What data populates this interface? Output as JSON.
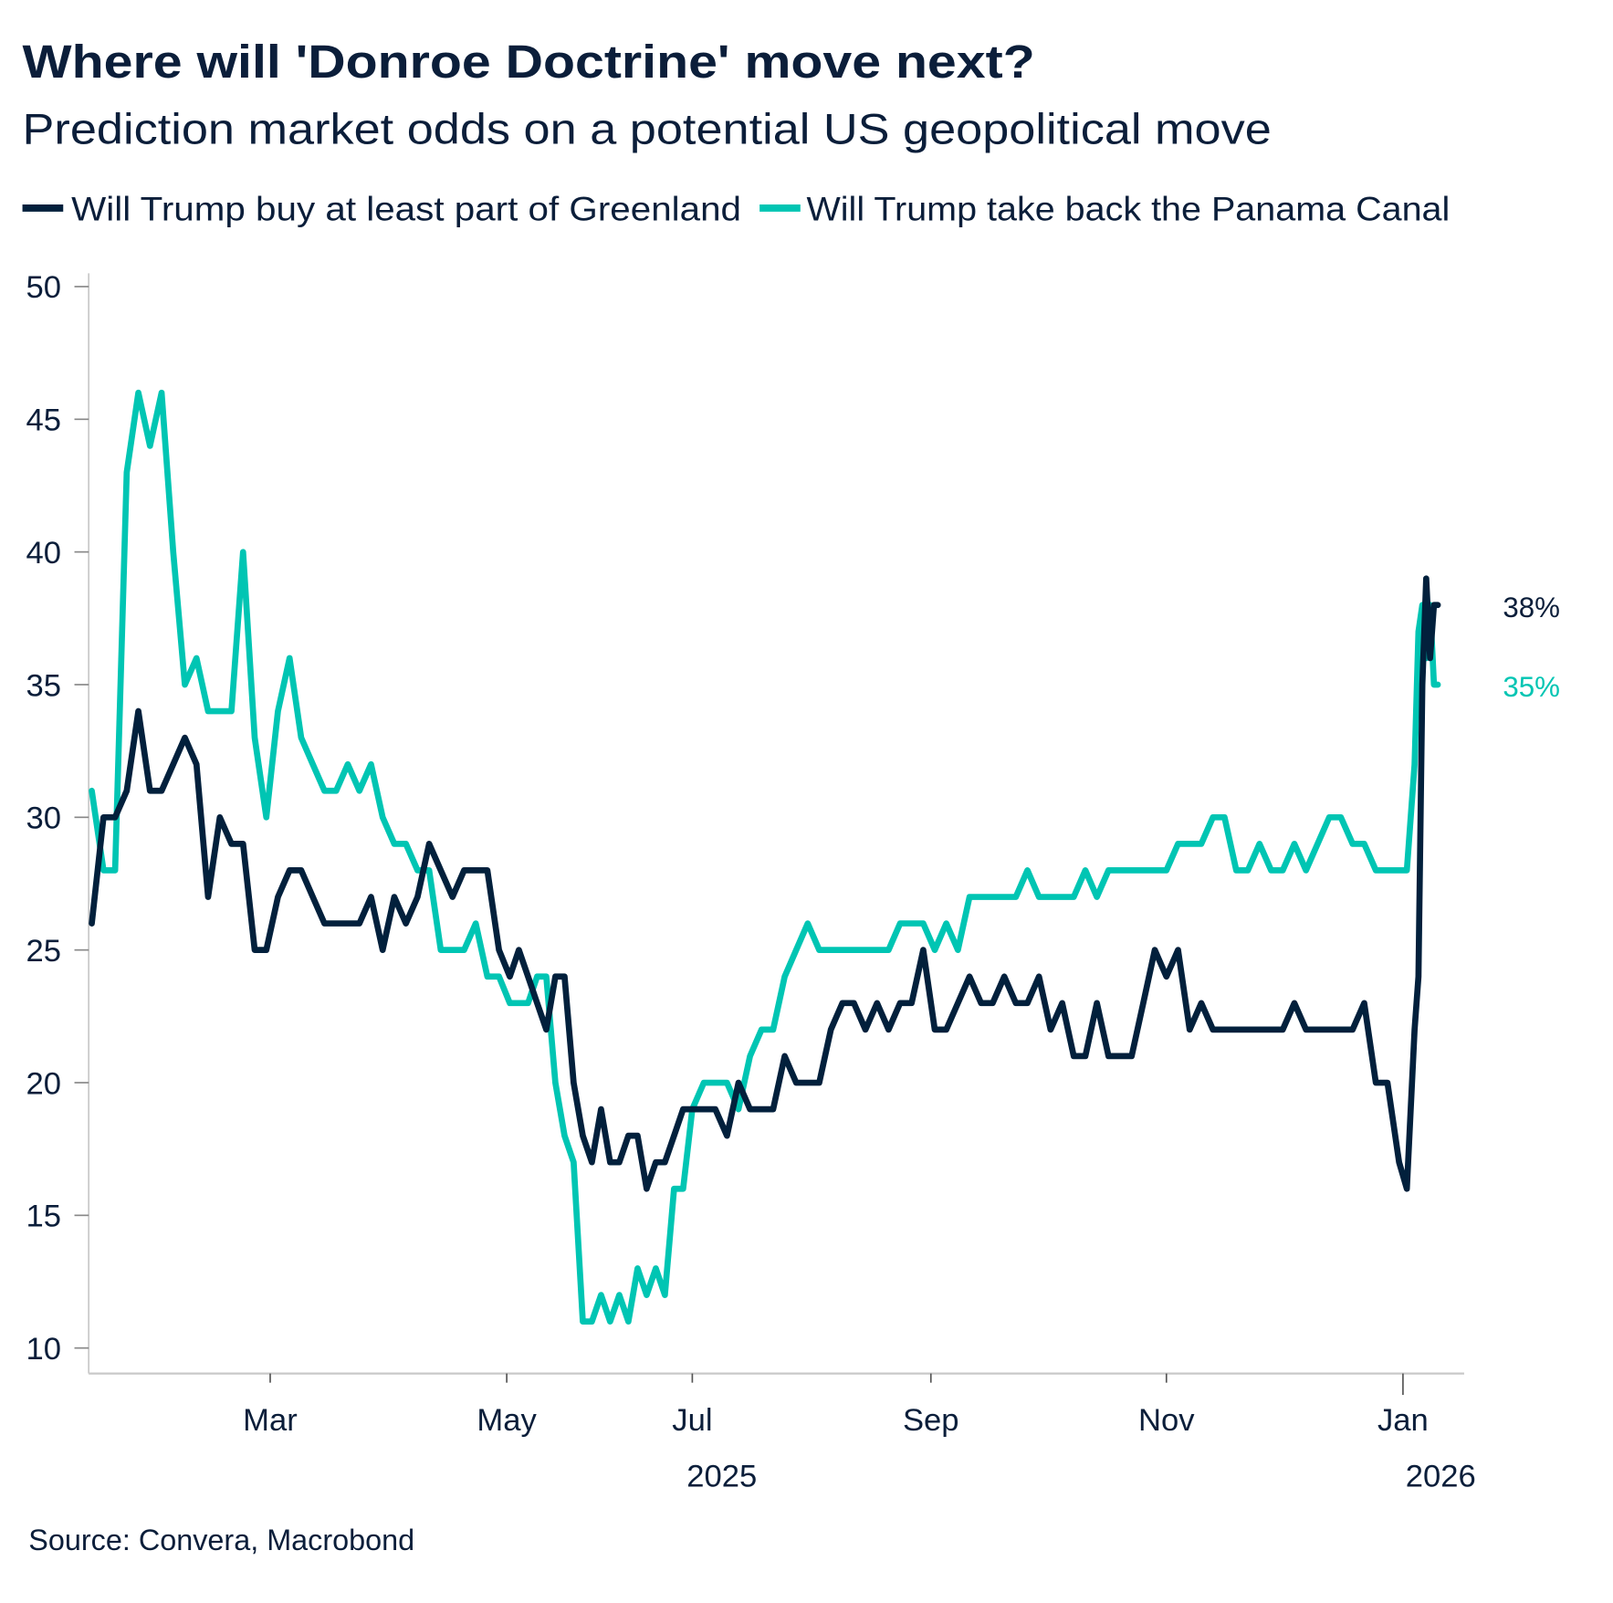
{
  "title": "Where will 'Donroe Doctrine' move next?",
  "subtitle": "Prediction market odds on a potential US geopolitical move",
  "source": "Source: Convera, Macrobond",
  "colors": {
    "greenland": "#02203c",
    "panama": "#00c5b3",
    "text": "#0b1e3a",
    "axis": "#c8c8c8"
  },
  "chart_data": {
    "type": "line",
    "title": "Where will 'Donroe Doctrine' move next?",
    "subtitle": "Prediction market odds on a potential US geopolitical move",
    "xlabel": "",
    "ylabel": "",
    "ylim": [
      9,
      51
    ],
    "yticks": [
      10,
      15,
      20,
      25,
      30,
      35,
      40,
      45,
      50
    ],
    "yticks_text": [
      "10",
      "15",
      "20",
      "25",
      "30",
      "35",
      "40",
      "45",
      "50"
    ],
    "xticks": [
      {
        "date": "2025-03-01",
        "label": "Mar"
      },
      {
        "date": "2025-05-01",
        "label": "May"
      },
      {
        "date": "2025-07-01",
        "label": "Jul"
      },
      {
        "date": "2025-09-01",
        "label": "Sep"
      },
      {
        "date": "2025-11-01",
        "label": "Nov"
      },
      {
        "date": "2026-01-01",
        "label": "Jan"
      }
    ],
    "year_labels": [
      "2025",
      "2026"
    ],
    "grid": false,
    "legend": "top",
    "x": [
      "2025-01-14",
      "2025-01-17",
      "2025-01-20",
      "2025-01-23",
      "2025-01-26",
      "2025-01-29",
      "2025-02-01",
      "2025-02-04",
      "2025-02-07",
      "2025-02-10",
      "2025-02-13",
      "2025-02-16",
      "2025-02-19",
      "2025-02-22",
      "2025-02-25",
      "2025-02-28",
      "2025-03-03",
      "2025-03-06",
      "2025-03-09",
      "2025-03-12",
      "2025-03-15",
      "2025-03-18",
      "2025-03-21",
      "2025-03-24",
      "2025-03-27",
      "2025-03-30",
      "2025-04-02",
      "2025-04-05",
      "2025-04-08",
      "2025-04-11",
      "2025-04-14",
      "2025-04-17",
      "2025-04-20",
      "2025-04-23",
      "2025-04-26",
      "2025-04-29",
      "2025-05-02",
      "2025-05-05",
      "2025-05-08",
      "2025-05-11",
      "2025-05-14",
      "2025-05-17",
      "2025-05-20",
      "2025-05-23",
      "2025-05-26",
      "2025-05-29",
      "2025-06-01",
      "2025-06-04",
      "2025-06-07",
      "2025-06-10",
      "2025-06-13",
      "2025-06-16",
      "2025-06-19",
      "2025-06-22",
      "2025-06-25",
      "2025-06-28",
      "2025-07-01",
      "2025-07-04",
      "2025-07-07",
      "2025-07-10",
      "2025-07-13",
      "2025-07-16",
      "2025-07-19",
      "2025-07-22",
      "2025-07-25",
      "2025-07-28",
      "2025-07-31",
      "2025-08-03",
      "2025-08-06",
      "2025-08-09",
      "2025-08-12",
      "2025-08-15",
      "2025-08-18",
      "2025-08-21",
      "2025-08-24",
      "2025-08-27",
      "2025-08-30",
      "2025-09-02",
      "2025-09-05",
      "2025-09-08",
      "2025-09-11",
      "2025-09-14",
      "2025-09-17",
      "2025-09-20",
      "2025-09-23",
      "2025-09-26",
      "2025-09-29",
      "2025-10-02",
      "2025-10-05",
      "2025-10-08",
      "2025-10-11",
      "2025-10-14",
      "2025-10-17",
      "2025-10-20",
      "2025-10-23",
      "2025-10-26",
      "2025-10-29",
      "2025-11-01",
      "2025-11-04",
      "2025-11-07",
      "2025-11-10",
      "2025-11-13",
      "2025-11-16",
      "2025-11-19",
      "2025-11-22",
      "2025-11-25",
      "2025-11-28",
      "2025-12-01",
      "2025-12-04",
      "2025-12-07",
      "2025-12-10",
      "2025-12-13",
      "2025-12-16",
      "2025-12-19",
      "2025-12-22",
      "2025-12-25",
      "2025-12-28",
      "2025-12-31",
      "2026-01-02",
      "2026-01-04",
      "2026-01-05",
      "2026-01-06",
      "2026-01-07",
      "2026-01-08",
      "2026-01-09",
      "2026-01-10"
    ],
    "series": [
      {
        "name": "Will Trump buy at least part of Greenland",
        "color": "#02203c",
        "end_label": "38%",
        "values": [
          26,
          30,
          30,
          31,
          34,
          31,
          31,
          32,
          33,
          32,
          27,
          30,
          29,
          29,
          25,
          25,
          27,
          28,
          28,
          27,
          26,
          26,
          26,
          26,
          27,
          25,
          27,
          26,
          27,
          29,
          28,
          27,
          28,
          28,
          28,
          25,
          24,
          25,
          24,
          23,
          22,
          24,
          24,
          20,
          18,
          17,
          19,
          17,
          17,
          18,
          18,
          16,
          17,
          17,
          18,
          19,
          19,
          19,
          19,
          18,
          20,
          19,
          19,
          19,
          21,
          20,
          20,
          20,
          22,
          23,
          23,
          22,
          23,
          22,
          23,
          23,
          25,
          22,
          22,
          23,
          24,
          23,
          23,
          24,
          23,
          23,
          24,
          22,
          23,
          21,
          21,
          23,
          21,
          21,
          21,
          23,
          25,
          24,
          25,
          22,
          23,
          22,
          22,
          22,
          22,
          22,
          22,
          22,
          23,
          22,
          22,
          22,
          22,
          22,
          23,
          20,
          20,
          17,
          16,
          22,
          24,
          35,
          39,
          36,
          38,
          38
        ]
      },
      {
        "name": "Will Trump take back the Panama Canal",
        "color": "#00c5b3",
        "end_label": "35%",
        "values": [
          31,
          28,
          28,
          43,
          46,
          44,
          46,
          40,
          35,
          36,
          34,
          34,
          34,
          40,
          33,
          30,
          34,
          36,
          33,
          32,
          31,
          31,
          32,
          31,
          32,
          30,
          29,
          29,
          28,
          28,
          25,
          25,
          25,
          26,
          24,
          24,
          23,
          23,
          23,
          24,
          24,
          20,
          18,
          17,
          11,
          11,
          12,
          11,
          12,
          11,
          13,
          12,
          13,
          12,
          16,
          16,
          19,
          20,
          20,
          20,
          19,
          21,
          22,
          22,
          24,
          25,
          26,
          25,
          25,
          25,
          25,
          25,
          25,
          25,
          26,
          26,
          26,
          25,
          26,
          25,
          27,
          27,
          27,
          27,
          27,
          28,
          27,
          27,
          27,
          27,
          28,
          27,
          28,
          28,
          28,
          28,
          28,
          28,
          29,
          29,
          29,
          30,
          30,
          28,
          28,
          29,
          28,
          28,
          29,
          28,
          29,
          30,
          30,
          29,
          29,
          28,
          28,
          28,
          28,
          32,
          37,
          38,
          36,
          38,
          35,
          35
        ]
      }
    ]
  }
}
